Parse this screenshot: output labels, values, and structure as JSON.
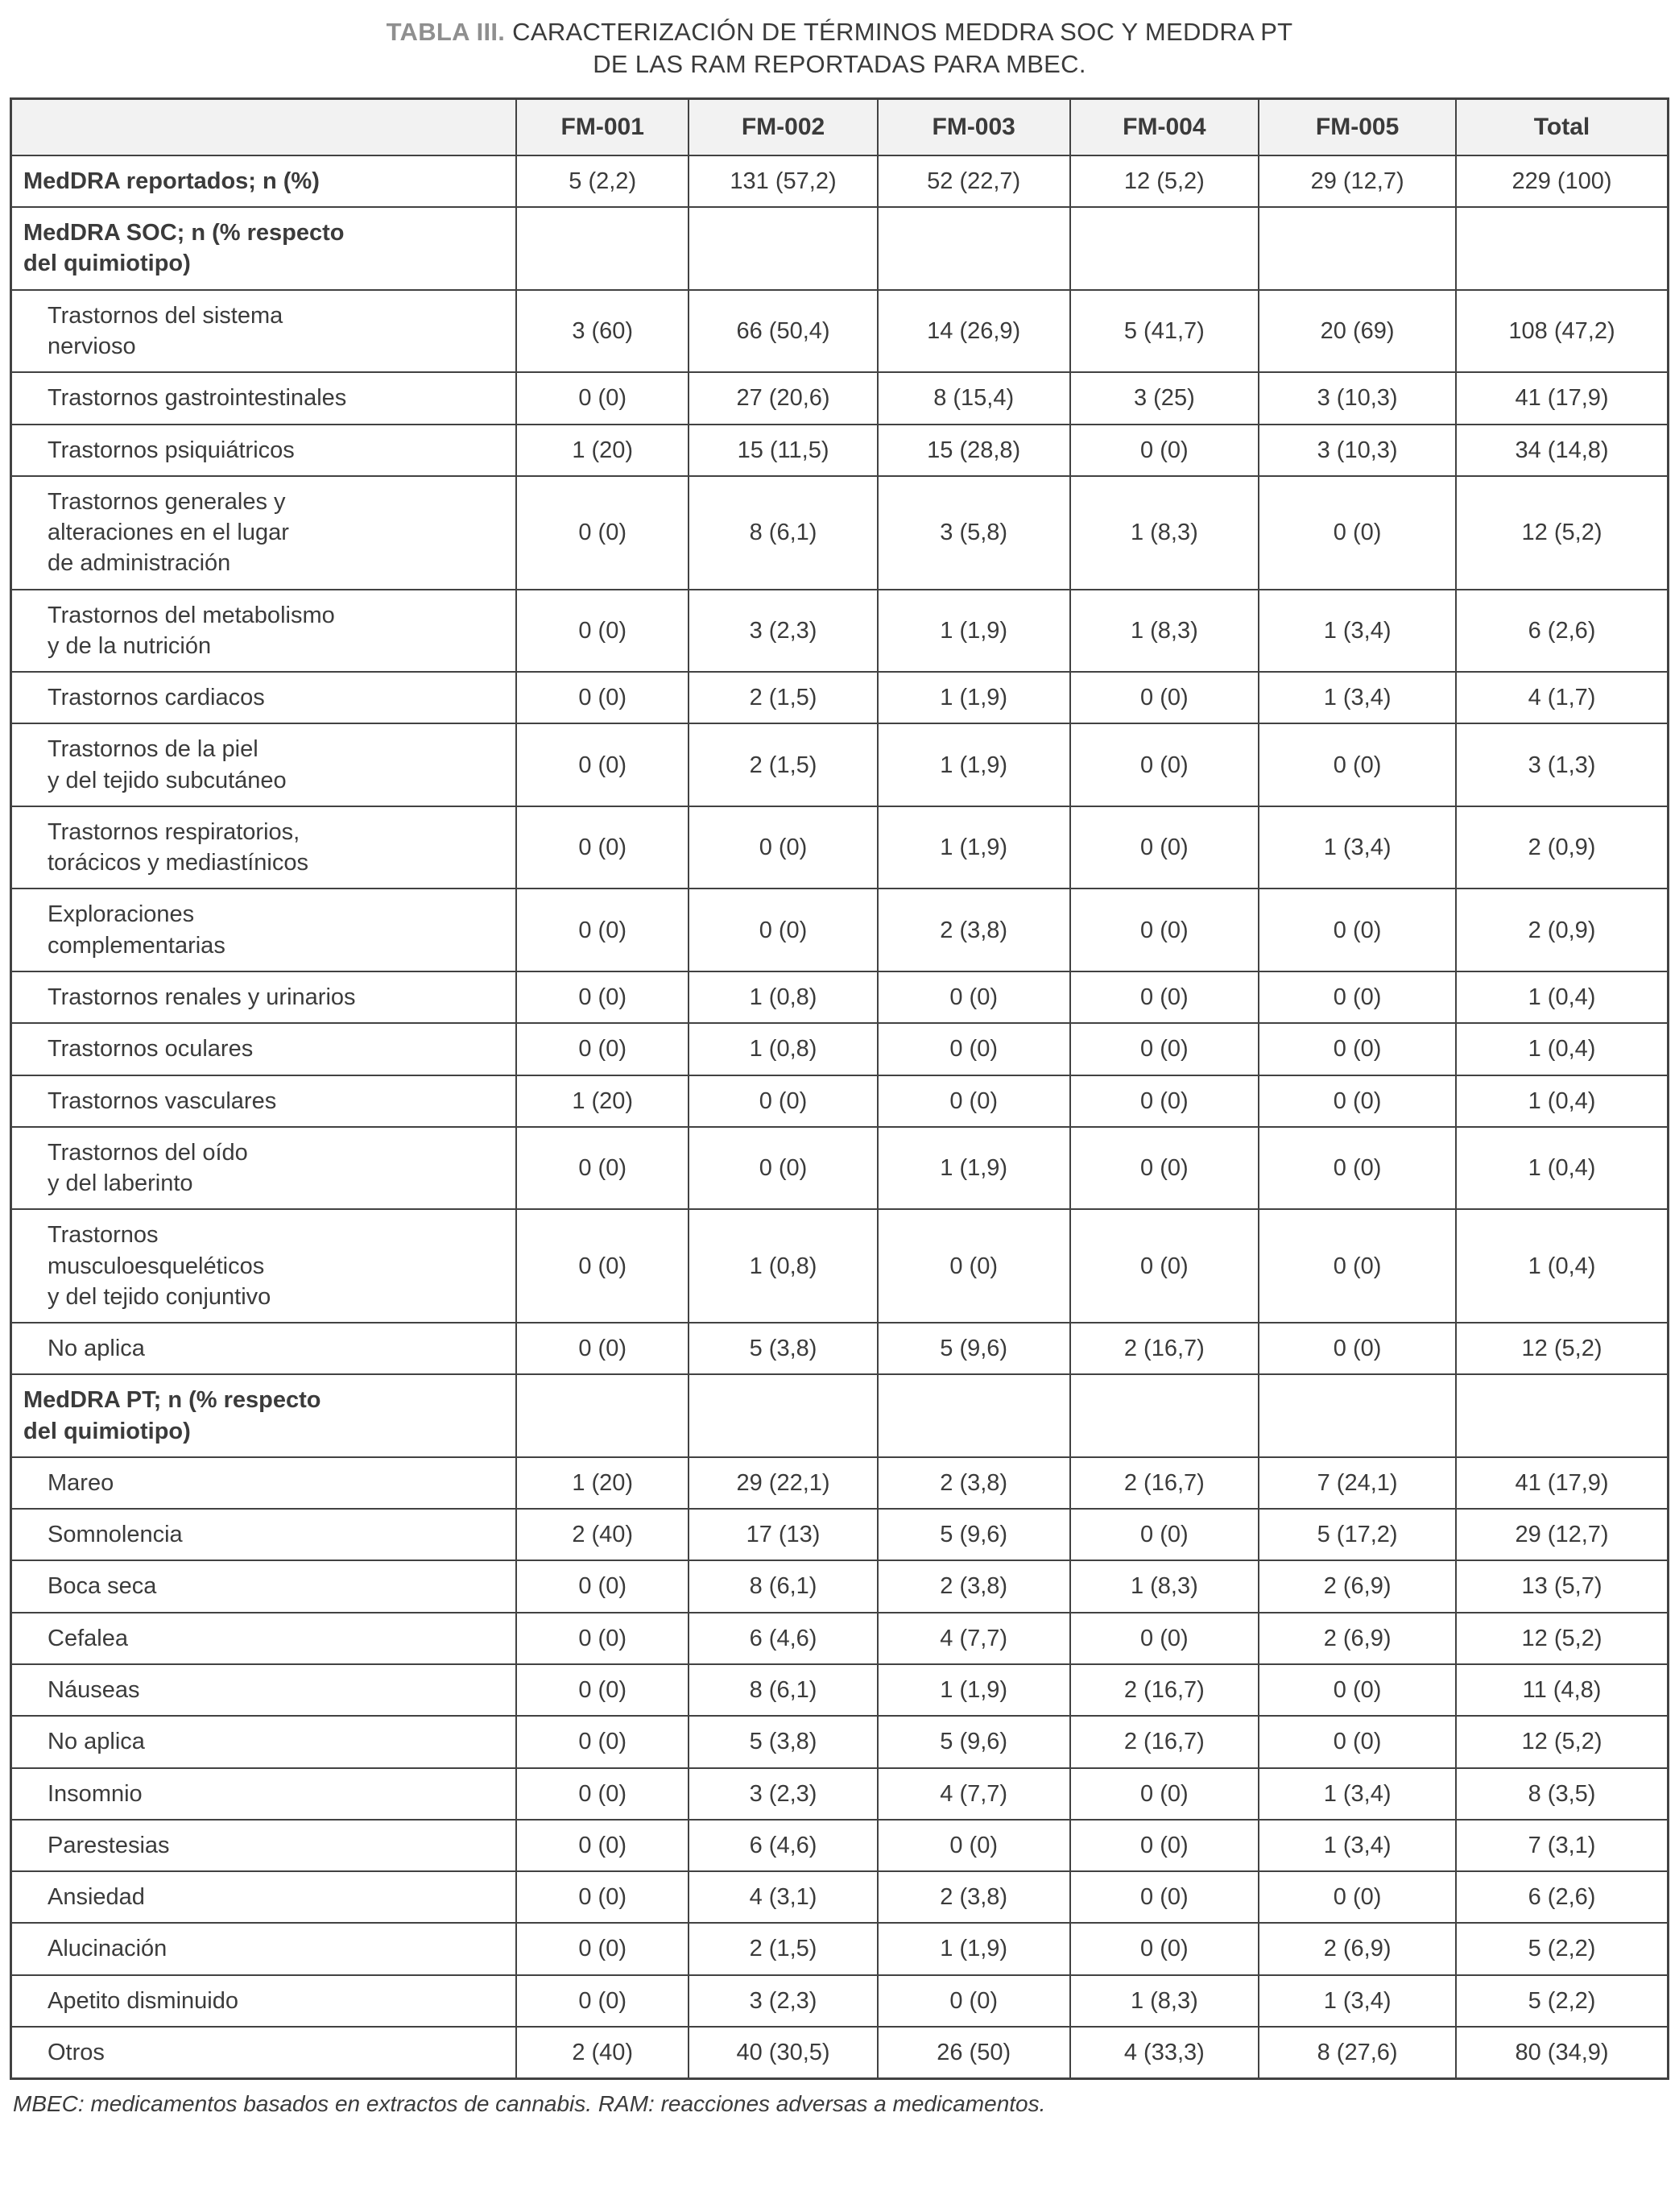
{
  "title": {
    "label": "TABLA III.",
    "text": "CARACTERIZACIÓN DE TÉRMINOS MEDDRA SOC Y MEDDRA PT\nDE LAS RAM REPORTADAS PARA MBEC."
  },
  "colors": {
    "caption_label": "#8f8f8f",
    "text": "#3b3b3b",
    "border": "#424242",
    "header_bg": "#f2f2f2"
  },
  "table": {
    "columns": [
      "",
      "FM-001",
      "FM-002",
      "FM-003",
      "FM-004",
      "FM-005",
      "Total"
    ],
    "rows": [
      {
        "type": "bold",
        "label": "MedDRA reportados; n (%)",
        "values": [
          "5 (2,2)",
          "131 (57,2)",
          "52 (22,7)",
          "12 (5,2)",
          "29 (12,7)",
          "229 (100)"
        ]
      },
      {
        "type": "section",
        "label": "MedDRA SOC; n (% respecto\ndel quimiotipo)",
        "values": [
          "",
          "",
          "",
          "",
          "",
          ""
        ]
      },
      {
        "type": "sub",
        "label": "Trastornos del sistema\nnervioso",
        "values": [
          "3 (60)",
          "66 (50,4)",
          "14 (26,9)",
          "5 (41,7)",
          "20 (69)",
          "108 (47,2)"
        ]
      },
      {
        "type": "sub",
        "label": "Trastornos gastrointestinales",
        "values": [
          "0 (0)",
          "27 (20,6)",
          "8 (15,4)",
          "3 (25)",
          "3 (10,3)",
          "41 (17,9)"
        ]
      },
      {
        "type": "sub",
        "label": "Trastornos psiquiátricos",
        "values": [
          "1 (20)",
          "15 (11,5)",
          "15 (28,8)",
          "0 (0)",
          "3 (10,3)",
          "34 (14,8)"
        ]
      },
      {
        "type": "sub",
        "label": "Trastornos generales y\nalteraciones en el lugar\nde administración",
        "values": [
          "0 (0)",
          "8 (6,1)",
          "3 (5,8)",
          "1 (8,3)",
          "0 (0)",
          "12 (5,2)"
        ]
      },
      {
        "type": "sub",
        "label": "Trastornos del metabolismo\ny de la nutrición",
        "values": [
          "0 (0)",
          "3 (2,3)",
          "1 (1,9)",
          "1 (8,3)",
          "1 (3,4)",
          "6 (2,6)"
        ]
      },
      {
        "type": "sub",
        "label": "Trastornos cardiacos",
        "values": [
          "0 (0)",
          "2 (1,5)",
          "1 (1,9)",
          "0 (0)",
          "1 (3,4)",
          "4 (1,7)"
        ]
      },
      {
        "type": "sub",
        "label": "Trastornos de la piel\ny del tejido subcutáneo",
        "values": [
          "0 (0)",
          "2 (1,5)",
          "1 (1,9)",
          "0 (0)",
          "0 (0)",
          "3 (1,3)"
        ]
      },
      {
        "type": "sub",
        "label": "Trastornos respiratorios,\ntorácicos y mediastínicos",
        "values": [
          "0 (0)",
          "0 (0)",
          "1 (1,9)",
          "0 (0)",
          "1 (3,4)",
          "2 (0,9)"
        ]
      },
      {
        "type": "sub",
        "label": "Exploraciones\ncomplementarias",
        "values": [
          "0 (0)",
          "0 (0)",
          "2 (3,8)",
          "0 (0)",
          "0 (0)",
          "2 (0,9)"
        ]
      },
      {
        "type": "sub",
        "label": "Trastornos renales y urinarios",
        "values": [
          "0 (0)",
          "1 (0,8)",
          "0 (0)",
          "0 (0)",
          "0 (0)",
          "1 (0,4)"
        ]
      },
      {
        "type": "sub",
        "label": "Trastornos oculares",
        "values": [
          "0 (0)",
          "1 (0,8)",
          "0 (0)",
          "0 (0)",
          "0 (0)",
          "1 (0,4)"
        ]
      },
      {
        "type": "sub",
        "label": "Trastornos vasculares",
        "values": [
          "1 (20)",
          "0 (0)",
          "0 (0)",
          "0 (0)",
          "0 (0)",
          "1 (0,4)"
        ]
      },
      {
        "type": "sub",
        "label": "Trastornos del oído\ny del laberinto",
        "values": [
          "0 (0)",
          "0 (0)",
          "1 (1,9)",
          "0 (0)",
          "0 (0)",
          "1 (0,4)"
        ]
      },
      {
        "type": "sub",
        "label": "Trastornos\nmusculoesqueléticos\ny del tejido conjuntivo",
        "values": [
          "0 (0)",
          "1 (0,8)",
          "0 (0)",
          "0 (0)",
          "0 (0)",
          "1 (0,4)"
        ]
      },
      {
        "type": "sub",
        "label": "No aplica",
        "values": [
          "0 (0)",
          "5 (3,8)",
          "5 (9,6)",
          "2 (16,7)",
          "0 (0)",
          "12 (5,2)"
        ]
      },
      {
        "type": "section",
        "label": "MedDRA PT; n (% respecto\ndel quimiotipo)",
        "values": [
          "",
          "",
          "",
          "",
          "",
          ""
        ]
      },
      {
        "type": "sub",
        "label": "Mareo",
        "values": [
          "1 (20)",
          "29 (22,1)",
          "2 (3,8)",
          "2 (16,7)",
          "7 (24,1)",
          "41 (17,9)"
        ]
      },
      {
        "type": "sub",
        "label": "Somnolencia",
        "values": [
          "2 (40)",
          "17 (13)",
          "5 (9,6)",
          "0 (0)",
          "5 (17,2)",
          "29 (12,7)"
        ]
      },
      {
        "type": "sub",
        "label": "Boca seca",
        "values": [
          "0 (0)",
          "8 (6,1)",
          "2 (3,8)",
          "1 (8,3)",
          "2 (6,9)",
          "13 (5,7)"
        ]
      },
      {
        "type": "sub",
        "label": "Cefalea",
        "values": [
          "0 (0)",
          "6 (4,6)",
          "4 (7,7)",
          "0 (0)",
          "2 (6,9)",
          "12 (5,2)"
        ]
      },
      {
        "type": "sub",
        "label": "Náuseas",
        "values": [
          "0 (0)",
          "8 (6,1)",
          "1 (1,9)",
          "2 (16,7)",
          "0 (0)",
          "11 (4,8)"
        ]
      },
      {
        "type": "sub",
        "label": "No aplica",
        "values": [
          "0 (0)",
          "5 (3,8)",
          "5 (9,6)",
          "2 (16,7)",
          "0 (0)",
          "12 (5,2)"
        ]
      },
      {
        "type": "sub",
        "label": "Insomnio",
        "values": [
          "0 (0)",
          "3 (2,3)",
          "4 (7,7)",
          "0 (0)",
          "1 (3,4)",
          "8 (3,5)"
        ]
      },
      {
        "type": "sub",
        "label": "Parestesias",
        "values": [
          "0 (0)",
          "6 (4,6)",
          "0 (0)",
          "0 (0)",
          "1 (3,4)",
          "7 (3,1)"
        ]
      },
      {
        "type": "sub",
        "label": "Ansiedad",
        "values": [
          "0 (0)",
          "4 (3,1)",
          "2 (3,8)",
          "0 (0)",
          "0 (0)",
          "6 (2,6)"
        ]
      },
      {
        "type": "sub",
        "label": "Alucinación",
        "values": [
          "0 (0)",
          "2 (1,5)",
          "1 (1,9)",
          "0 (0)",
          "2 (6,9)",
          "5 (2,2)"
        ]
      },
      {
        "type": "sub",
        "label": "Apetito disminuido",
        "values": [
          "0 (0)",
          "3 (2,3)",
          "0 (0)",
          "1 (8,3)",
          "1 (3,4)",
          "5 (2,2)"
        ]
      },
      {
        "type": "sub",
        "label": "Otros",
        "values": [
          "2 (40)",
          "40 (30,5)",
          "26 (50)",
          "4 (33,3)",
          "8 (27,6)",
          "80 (34,9)"
        ]
      }
    ]
  },
  "footnote": "MBEC: medicamentos basados en extractos de cannabis. RAM: reacciones adversas a medicamentos."
}
